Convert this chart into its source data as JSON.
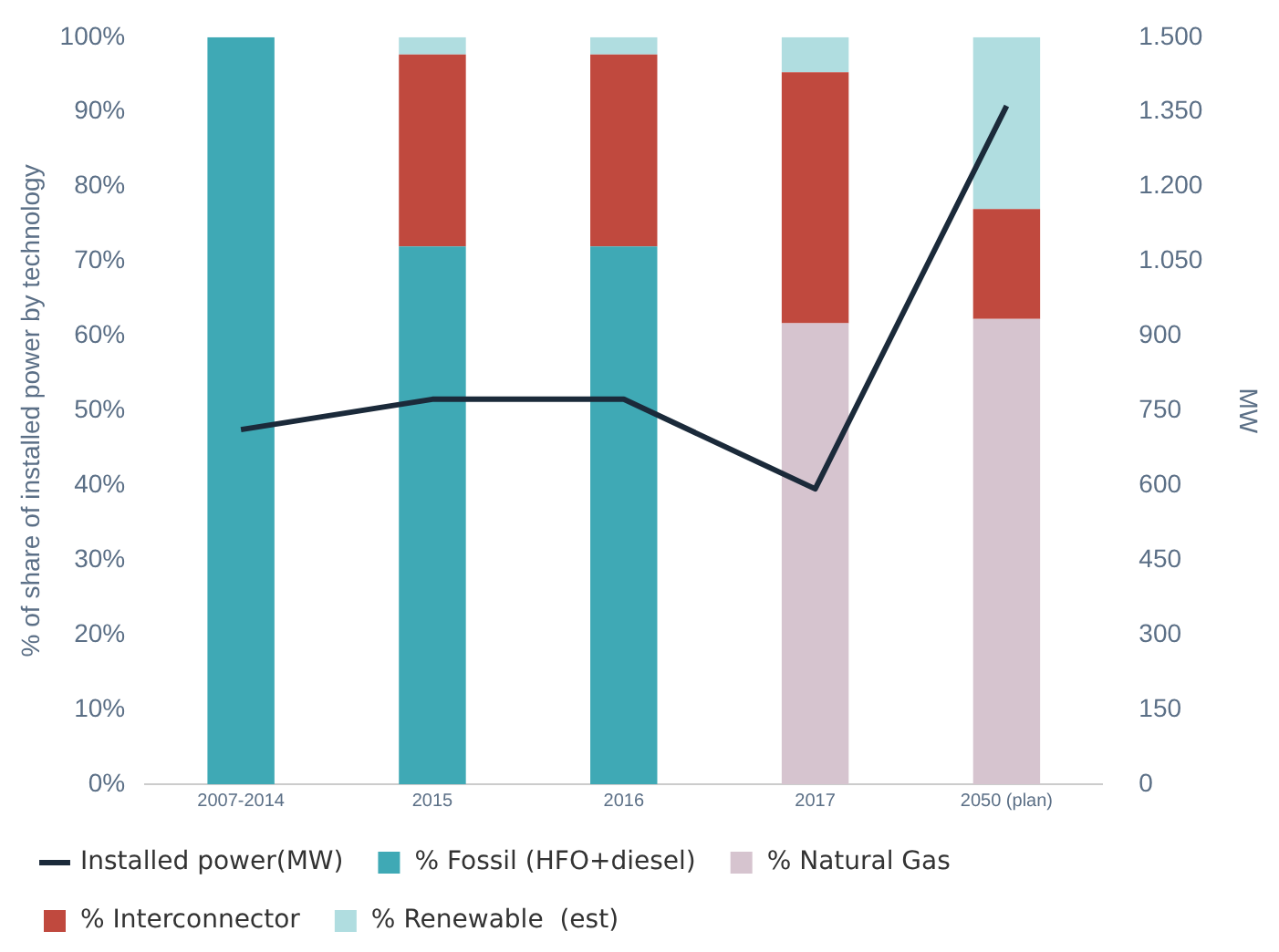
{
  "chart_data": {
    "type": "bar",
    "stacked": true,
    "ylabel": "% of share of installed power by technology",
    "y2label": "MW",
    "categories": [
      "2007-2014",
      "2015",
      "2016",
      "2017",
      "2050 (plan)"
    ],
    "series": [
      {
        "name": "% Fossil (HFO+diesel)",
        "color": "#3fa9b5",
        "values": [
          100,
          72,
          72,
          null,
          null
        ]
      },
      {
        "name": "% Natural Gas",
        "color": "#d6c4cf",
        "values": [
          null,
          null,
          null,
          61.7,
          62.3
        ]
      },
      {
        "name": "% Interconnector",
        "color": "#c0493e",
        "values": [
          null,
          25.7,
          25.7,
          33.6,
          14.7
        ]
      },
      {
        "name": "% Renewable  (est)",
        "color": "#b0dde0",
        "values": [
          null,
          2.3,
          2.3,
          4.7,
          23
        ]
      },
      {
        "name": "Installed power(MW)",
        "type": "line",
        "axis": "y2",
        "color": "#1b2a3a",
        "values": [
          712,
          773,
          773,
          593,
          1362
        ]
      }
    ],
    "ylim": [
      0,
      100
    ],
    "yticks": [
      {
        "value": 0,
        "label": "0%"
      },
      {
        "value": 10,
        "label": "10%"
      },
      {
        "value": 20,
        "label": "20%"
      },
      {
        "value": 30,
        "label": "30%"
      },
      {
        "value": 40,
        "label": "40%"
      },
      {
        "value": 50,
        "label": "50%"
      },
      {
        "value": 60,
        "label": "60%"
      },
      {
        "value": 70,
        "label": "70%"
      },
      {
        "value": 80,
        "label": "80%"
      },
      {
        "value": 90,
        "label": "90%"
      },
      {
        "value": 100,
        "label": "100%"
      }
    ],
    "y2lim": [
      0,
      1500
    ],
    "y2ticks": [
      0,
      150,
      300,
      450,
      600,
      750,
      900,
      {
        "value": 1050,
        "label": "1.050"
      },
      {
        "value": 1200,
        "label": "1.200"
      },
      {
        "value": 1350,
        "label": "1.350"
      },
      {
        "value": 1500,
        "label": "1.500"
      }
    ],
    "grid": false,
    "legend": "bottom",
    "marker": "none",
    "line_style": "solid"
  }
}
